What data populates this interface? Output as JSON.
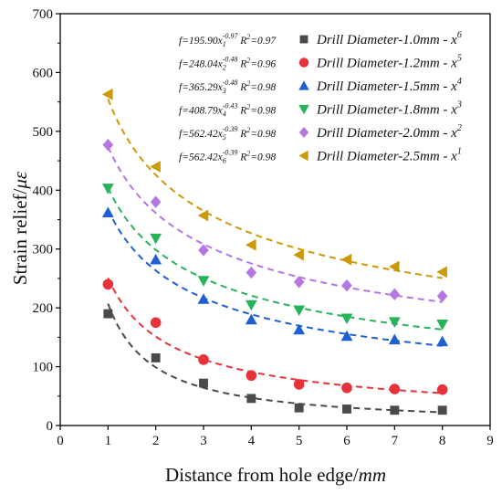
{
  "chart_data": {
    "type": "scatter",
    "xlabel": "Distance from hole edge",
    "xlabel_unit": "mm",
    "ylabel": "Strain relief",
    "ylabel_unit": "με",
    "xlim": [
      0,
      9
    ],
    "ylim": [
      0,
      700
    ],
    "xticks": [
      0,
      1,
      2,
      3,
      4,
      5,
      6,
      7,
      8,
      9
    ],
    "yticks": [
      0,
      100,
      200,
      300,
      400,
      500,
      600,
      700
    ],
    "grid": false,
    "legend_position": "top-right",
    "x": [
      1,
      2,
      3,
      4,
      5,
      6,
      7,
      8
    ],
    "series": [
      {
        "name": "Drill Diameter-1.0mm - x",
        "variable_sub": "6",
        "equation": {
          "coef": "195.90",
          "var": "x",
          "sub": "1",
          "exp": "-0.97",
          "r2": "0.97"
        },
        "color": "#4a4a4a",
        "marker": "square",
        "values": [
          190,
          115,
          72,
          46,
          30,
          28,
          26,
          26
        ]
      },
      {
        "name": "Drill Diameter-1.2mm - x",
        "variable_sub": "5",
        "equation": {
          "coef": "248.04",
          "var": "x",
          "sub": "2",
          "exp": "-0.48",
          "r2": "0.96"
        },
        "color": "#e8323a",
        "marker": "circle",
        "values": [
          240,
          175,
          112,
          85,
          70,
          64,
          62,
          61
        ]
      },
      {
        "name": "Drill Diameter-1.5mm - x",
        "variable_sub": "4",
        "equation": {
          "coef": "365.29",
          "var": "x",
          "sub": "3",
          "exp": "-0.48",
          "r2": "0.98"
        },
        "color": "#1f5fd6",
        "marker": "triangle-up",
        "values": [
          362,
          282,
          215,
          180,
          163,
          152,
          146,
          143
        ]
      },
      {
        "name": "Drill Diameter-1.8mm - x",
        "variable_sub": "3",
        "equation": {
          "coef": "408.79",
          "var": "x",
          "sub": "4",
          "exp": "-0.43",
          "r2": "0.98"
        },
        "color": "#26b35a",
        "marker": "triangle-down",
        "values": [
          403,
          318,
          246,
          205,
          196,
          182,
          176,
          172
        ]
      },
      {
        "name": "Drill Diameter-2.0mm - x",
        "variable_sub": "2",
        "equation": {
          "coef": "562.42",
          "var": "x",
          "sub": "5",
          "exp": "-0.39",
          "r2": "0.98"
        },
        "color": "#b476e0",
        "marker": "diamond",
        "values": [
          477,
          380,
          298,
          260,
          244,
          238,
          223,
          220
        ]
      },
      {
        "name": "Drill Diameter-2.5mm - x",
        "variable_sub": "1",
        "equation": {
          "coef": "562.42",
          "var": "x",
          "sub": "6",
          "exp": "-0.39",
          "r2": "0.98"
        },
        "color": "#cc9a06",
        "marker": "triangle-left",
        "values": [
          563,
          440,
          357,
          307,
          290,
          282,
          270,
          261
        ]
      }
    ]
  }
}
